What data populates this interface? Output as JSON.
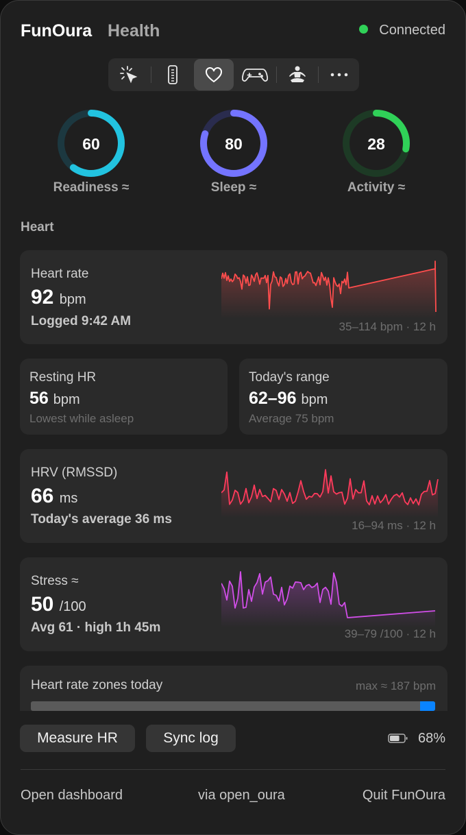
{
  "header": {
    "app_name": "FunOura",
    "section": "Health",
    "status_text": "Connected",
    "status_color": "#30d158"
  },
  "tabs": [
    {
      "name": "tab-cursor",
      "icon": "cursor-click-icon",
      "selected": false
    },
    {
      "name": "tab-remote",
      "icon": "remote-icon",
      "selected": false
    },
    {
      "name": "tab-health",
      "icon": "heart-icon",
      "selected": true
    },
    {
      "name": "tab-game",
      "icon": "gamepad-icon",
      "selected": false
    },
    {
      "name": "tab-meditation",
      "icon": "meditation-icon",
      "selected": false
    },
    {
      "name": "tab-more",
      "icon": "ellipsis-icon",
      "selected": false
    }
  ],
  "scores": [
    {
      "label": "Readiness ≈",
      "value": "60",
      "fraction": 0.6,
      "color": "#22c3e0",
      "track": "#1c3840"
    },
    {
      "label": "Sleep ≈",
      "value": "80",
      "fraction": 0.8,
      "color": "#7474ff",
      "track": "#2a2c4e"
    },
    {
      "label": "Activity ≈",
      "value": "28",
      "fraction": 0.28,
      "color": "#30d158",
      "track": "#1d3a25"
    }
  ],
  "heart_section_title": "Heart",
  "heart_rate": {
    "title": "Heart rate",
    "value": "92",
    "unit": "bpm",
    "sub": "Logged 9:42 AM",
    "caption": "35–114 bpm · 12 h",
    "color": "#ff4d4d"
  },
  "resting_hr": {
    "title": "Resting HR",
    "value": "56",
    "unit": "bpm",
    "sub": "Lowest while asleep"
  },
  "todays_range": {
    "title": "Today's range",
    "value": "62–96",
    "unit": "bpm",
    "sub": "Average 75 bpm"
  },
  "hrv": {
    "title": "HRV (RMSSD)",
    "value": "66",
    "unit": "ms",
    "sub": "Today's average 36 ms",
    "caption": "16–94 ms · 12 h",
    "color": "#ff3b5c"
  },
  "stress": {
    "title": "Stress ≈",
    "value": "50",
    "unit": "/100",
    "sub": "Avg 61 · high 1h 45m",
    "caption": "39–79 /100 · 12 h",
    "color": "#d14ee8"
  },
  "zones": {
    "title": "Heart rate zones today",
    "max_label": "max ≈ 187 bpm",
    "bar_color": "#5a5a5a",
    "marker_color": "#0a84ff"
  },
  "actions": {
    "measure_label": "Measure HR",
    "sync_label": "Sync log",
    "battery": "68%",
    "battery_level": 0.68
  },
  "footer": {
    "open_dashboard": "Open dashboard",
    "via": "via open_oura",
    "quit": "Quit FunOura"
  }
}
